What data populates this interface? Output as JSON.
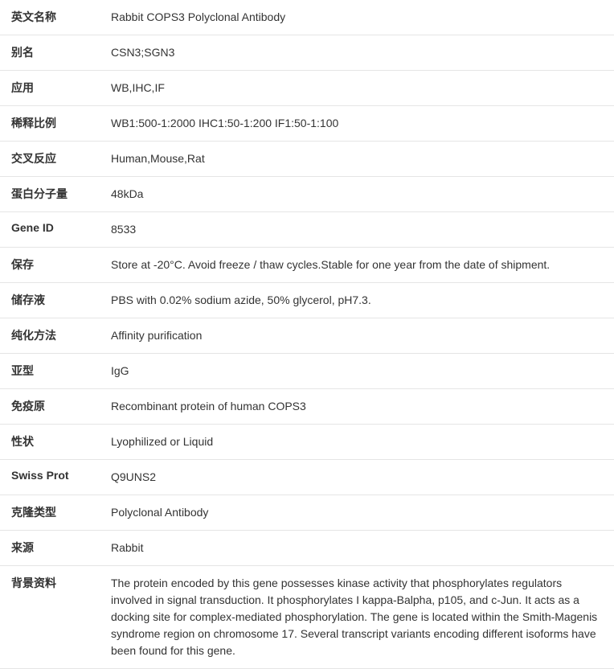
{
  "rows": [
    {
      "label": "英文名称",
      "value": "Rabbit COPS3 Polyclonal Antibody"
    },
    {
      "label": "别名",
      "value": "CSN3;SGN3"
    },
    {
      "label": "应用",
      "value": "WB,IHC,IF"
    },
    {
      "label": "稀释比例",
      "value": "WB1:500-1:2000 IHC1:50-1:200 IF1:50-1:100"
    },
    {
      "label": "交叉反应",
      "value": "Human,Mouse,Rat"
    },
    {
      "label": "蛋白分子量",
      "value": "48kDa"
    },
    {
      "label": "Gene ID",
      "value": "8533"
    },
    {
      "label": "保存",
      "value": "Store at -20°C. Avoid freeze / thaw cycles.Stable for one year from the date of shipment."
    },
    {
      "label": "储存液",
      "value": "PBS with 0.02% sodium azide, 50% glycerol, pH7.3."
    },
    {
      "label": "纯化方法",
      "value": "Affinity purification"
    },
    {
      "label": "亚型",
      "value": "IgG"
    },
    {
      "label": "免疫原",
      "value": "Recombinant protein of human COPS3"
    },
    {
      "label": "性状",
      "value": "Lyophilized or Liquid"
    },
    {
      "label": "Swiss Prot",
      "value": "Q9UNS2"
    },
    {
      "label": "克隆类型",
      "value": "Polyclonal Antibody"
    },
    {
      "label": "来源",
      "value": "Rabbit"
    },
    {
      "label": "背景资料",
      "value": "The protein encoded by this gene possesses kinase activity that phosphorylates regulators involved in signal transduction. It phosphorylates I kappa-Balpha, p105, and c-Jun. It acts as a docking site for complex-mediated phosphorylation. The gene is located within the Smith-Magenis syndrome region on chromosome 17. Several transcript variants encoding different isoforms have been found for this gene."
    }
  ]
}
